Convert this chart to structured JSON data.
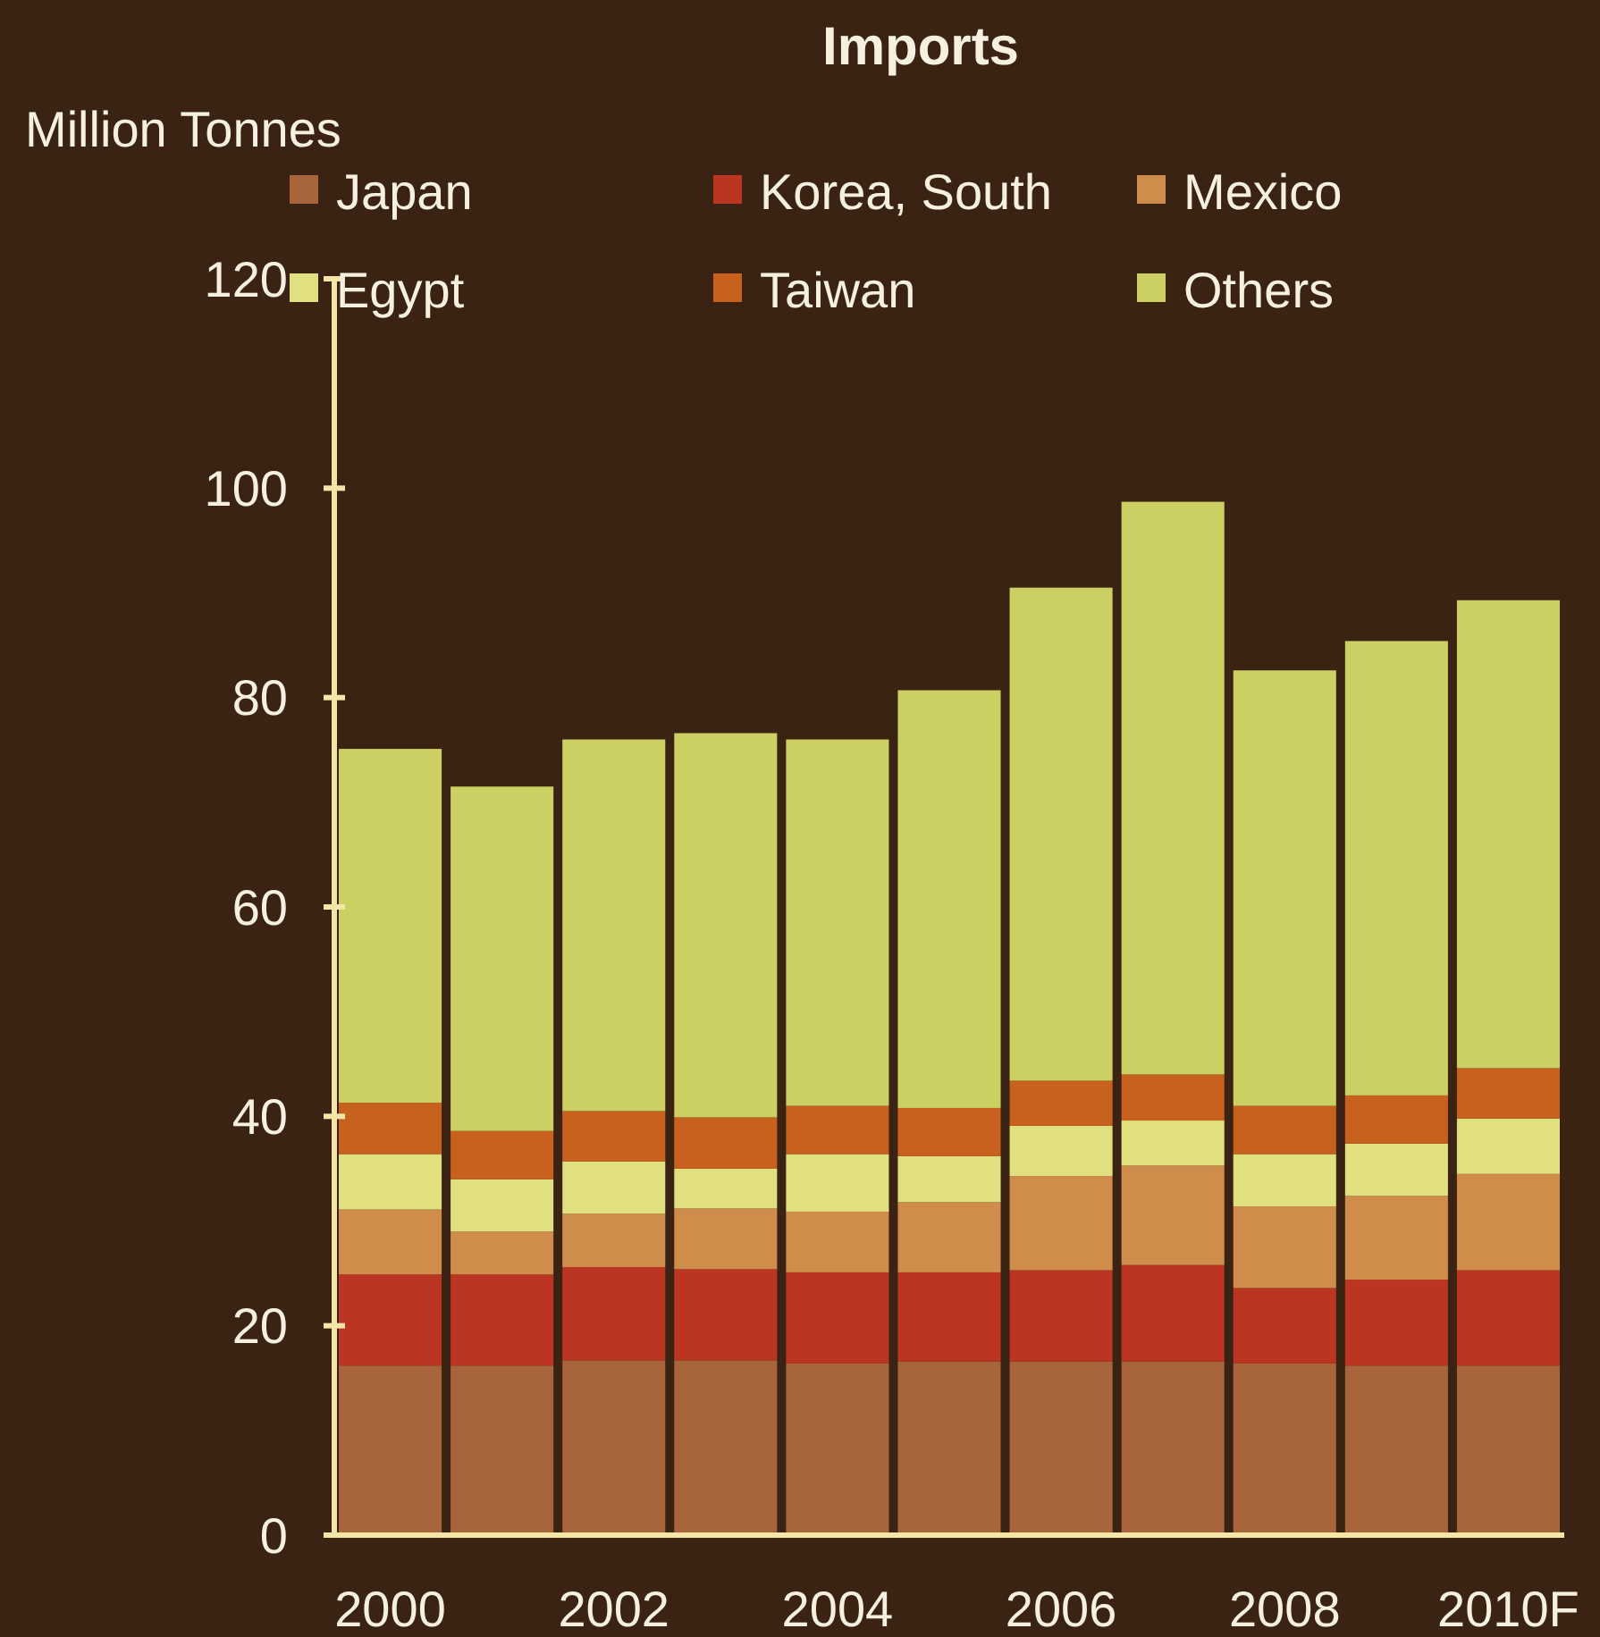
{
  "chart_data": {
    "type": "bar",
    "title": "Imports",
    "ylabel": "Million Tonnes",
    "stacked": true,
    "legend": "top",
    "grid": false,
    "categories": [
      "2000",
      null,
      "2002",
      null,
      "2004",
      null,
      "2006",
      null,
      "2008",
      null,
      "2010F"
    ],
    "ylim": [
      0,
      120
    ],
    "yticks": [
      0,
      20,
      40,
      60,
      80,
      100,
      120
    ],
    "series": [
      {
        "name": "Japan",
        "color": "#a8643a",
        "values": [
          16.2,
          16.2,
          16.7,
          16.7,
          16.4,
          16.6,
          16.6,
          16.6,
          16.4,
          16.2,
          16.2
        ]
      },
      {
        "name": "Korea, South",
        "color": "#bb3522",
        "values": [
          8.7,
          8.7,
          8.9,
          8.7,
          8.7,
          8.5,
          8.7,
          9.2,
          7.2,
          8.2,
          9.1
        ]
      },
      {
        "name": "Mexico",
        "color": "#d08c4a",
        "values": [
          6.2,
          4.1,
          5.1,
          5.8,
          5.8,
          6.7,
          9.0,
          9.5,
          7.8,
          8.0,
          9.2
        ]
      },
      {
        "name": "Egypt",
        "color": "#e0e080",
        "values": [
          5.3,
          5.0,
          5.0,
          3.8,
          5.5,
          4.4,
          4.8,
          4.3,
          5.0,
          5.0,
          5.3
        ]
      },
      {
        "name": "Taiwan",
        "color": "#c8601e",
        "values": [
          4.9,
          4.6,
          4.8,
          4.9,
          4.6,
          4.6,
          4.3,
          4.4,
          4.6,
          4.6,
          4.8
        ]
      },
      {
        "name": "Others",
        "color": "#cccf62",
        "values": [
          33.8,
          32.9,
          35.5,
          36.7,
          35.0,
          39.9,
          47.1,
          54.7,
          41.6,
          43.4,
          44.7
        ]
      }
    ]
  }
}
